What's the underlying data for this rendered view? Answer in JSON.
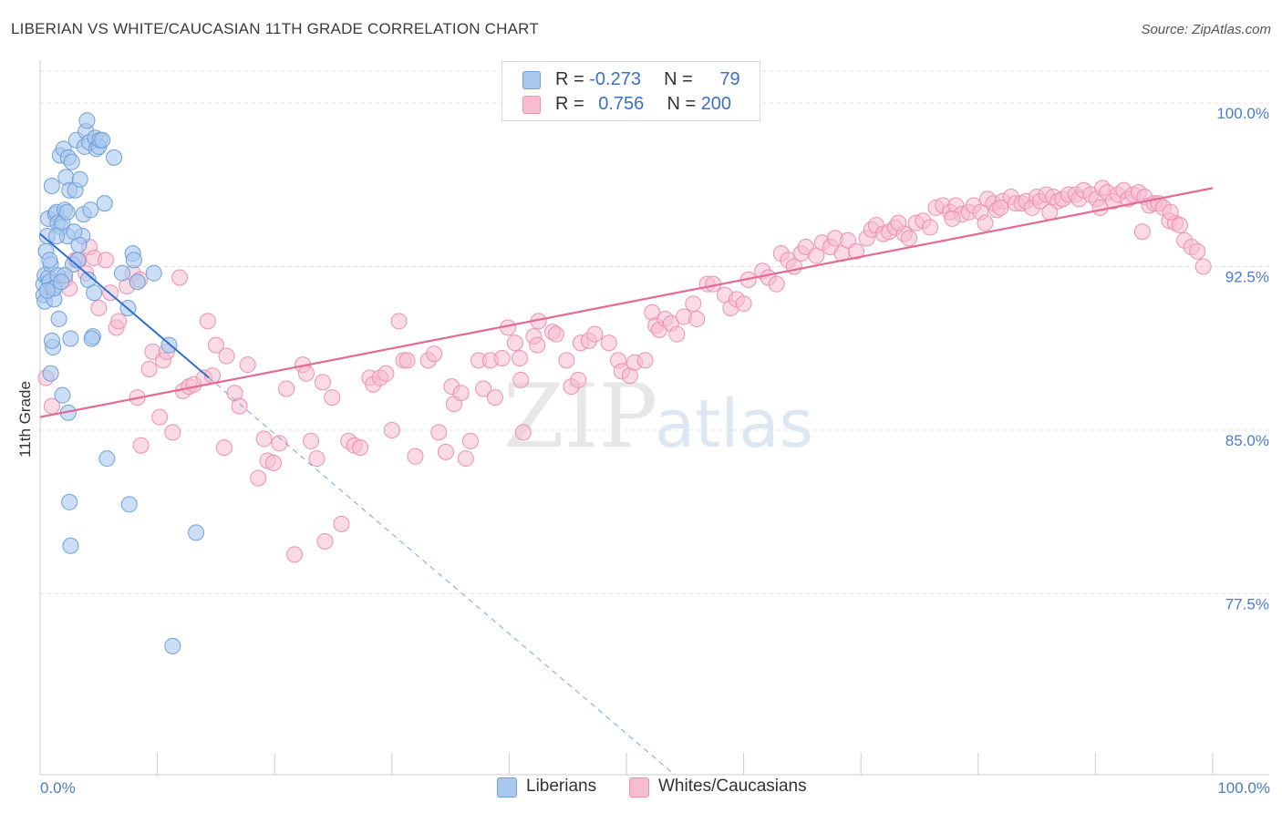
{
  "title": "LIBERIAN VS WHITE/CAUCASIAN 11TH GRADE CORRELATION CHART",
  "source": "Source: ZipAtlas.com",
  "watermark": {
    "zip": "ZIP",
    "atlas": "atlas"
  },
  "legend": {
    "rows": [
      {
        "r_label": "R = ",
        "r_value": "-0.273",
        "n_label": "N = ",
        "n_value": "79",
        "color": "#aac8ee"
      },
      {
        "r_label": "R = ",
        "r_value": "0.756",
        "n_label": "N = ",
        "n_value": "200",
        "color": "#f6bcd0"
      }
    ]
  },
  "bottom_legend": {
    "liberians": "Liberians",
    "whites": "Whites/Caucasians"
  },
  "colors": {
    "blue_fill": "#aac8ee",
    "blue_stroke": "#6f9fd8",
    "blue_line": "#2e6fd0",
    "pink_fill": "#f6bcd0",
    "pink_stroke": "#ee90b1",
    "pink_line": "#e46a95",
    "grid": "#e3e3e3",
    "axis_text": "#4a7cc9"
  },
  "chart_data": {
    "type": "scatter",
    "title": "LIBERIAN VS WHITE/CAUCASIAN 11TH GRADE CORRELATION CHART",
    "xlabel": "",
    "ylabel": "11th Grade",
    "xlim": [
      0,
      100
    ],
    "ylim": [
      69.2,
      101.8
    ],
    "x_tick_labels": [
      "0.0%",
      "100.0%"
    ],
    "y_ticks": [
      {
        "value": 100.0,
        "label": "100.0%"
      },
      {
        "value": 92.5,
        "label": "92.5%"
      },
      {
        "value": 85.0,
        "label": "85.0%"
      },
      {
        "value": 77.5,
        "label": "77.5%"
      }
    ],
    "series": [
      {
        "name": "Liberians",
        "r": -0.273,
        "n": 79,
        "trend": {
          "x0": 0,
          "y0": 94.0,
          "x1": 14.4,
          "y1": 87.4,
          "dashed_to_x": 53.8
        },
        "points": [
          [
            0.3,
            91.2
          ],
          [
            0.3,
            91.7
          ],
          [
            0.4,
            90.9
          ],
          [
            0.4,
            92.1
          ],
          [
            0.5,
            93.2
          ],
          [
            0.6,
            93.9
          ],
          [
            0.7,
            94.7
          ],
          [
            0.7,
            92.0
          ],
          [
            0.8,
            91.8
          ],
          [
            0.9,
            92.6
          ],
          [
            1.0,
            96.2
          ],
          [
            1.1,
            91.5
          ],
          [
            1.2,
            91.0
          ],
          [
            1.3,
            94.9
          ],
          [
            1.4,
            95.0
          ],
          [
            1.5,
            94.5
          ],
          [
            1.5,
            92.1
          ],
          [
            1.6,
            90.1
          ],
          [
            1.7,
            97.6
          ],
          [
            1.8,
            94.3
          ],
          [
            1.9,
            94.5
          ],
          [
            2.0,
            97.9
          ],
          [
            2.1,
            95.1
          ],
          [
            2.2,
            96.6
          ],
          [
            2.3,
            93.9
          ],
          [
            2.4,
            97.5
          ],
          [
            2.5,
            96.0
          ],
          [
            2.6,
            89.2
          ],
          [
            2.7,
            97.3
          ],
          [
            2.8,
            92.6
          ],
          [
            3.0,
            96.0
          ],
          [
            3.1,
            98.3
          ],
          [
            3.2,
            92.8
          ],
          [
            3.4,
            96.5
          ],
          [
            3.6,
            93.9
          ],
          [
            3.7,
            94.9
          ],
          [
            3.8,
            98.0
          ],
          [
            3.9,
            98.7
          ],
          [
            4.0,
            99.2
          ],
          [
            4.1,
            91.9
          ],
          [
            4.2,
            98.2
          ],
          [
            4.3,
            95.1
          ],
          [
            4.5,
            89.3
          ],
          [
            4.6,
            91.3
          ],
          [
            4.7,
            98.4
          ],
          [
            4.8,
            97.9
          ],
          [
            5.0,
            98.0
          ],
          [
            5.1,
            98.3
          ],
          [
            5.3,
            98.3
          ],
          [
            5.5,
            95.4
          ],
          [
            6.3,
            97.5
          ],
          [
            7.0,
            92.2
          ],
          [
            7.5,
            90.6
          ],
          [
            7.9,
            93.1
          ],
          [
            8.0,
            92.8
          ],
          [
            8.3,
            91.8
          ],
          [
            9.7,
            92.2
          ],
          [
            11.0,
            88.9
          ],
          [
            1.1,
            88.8
          ],
          [
            1.0,
            89.1
          ],
          [
            0.9,
            87.6
          ],
          [
            1.9,
            86.6
          ],
          [
            2.4,
            85.8
          ],
          [
            2.5,
            81.7
          ],
          [
            2.6,
            79.7
          ],
          [
            5.7,
            83.7
          ],
          [
            7.6,
            81.6
          ],
          [
            13.3,
            80.3
          ],
          [
            11.3,
            75.1
          ],
          [
            2.3,
            95.0
          ],
          [
            1.2,
            91.5
          ],
          [
            0.8,
            92.8
          ],
          [
            1.4,
            93.9
          ],
          [
            2.1,
            92.1
          ],
          [
            3.3,
            93.5
          ],
          [
            2.9,
            94.1
          ],
          [
            4.4,
            89.2
          ],
          [
            0.6,
            91.4
          ],
          [
            1.8,
            91.8
          ]
        ]
      },
      {
        "name": "Whites/Caucasians",
        "r": 0.756,
        "n": 200,
        "trend": {
          "x0": 0,
          "y0": 85.6,
          "x1": 100,
          "y1": 96.1
        },
        "points": [
          [
            0.5,
            87.4
          ],
          [
            1.0,
            86.1
          ],
          [
            2.1,
            91.9
          ],
          [
            2.5,
            91.5
          ],
          [
            3.0,
            92.8
          ],
          [
            3.3,
            92.8
          ],
          [
            3.9,
            92.2
          ],
          [
            4.2,
            93.4
          ],
          [
            4.6,
            92.9
          ],
          [
            5.0,
            90.6
          ],
          [
            5.6,
            92.8
          ],
          [
            6.0,
            91.3
          ],
          [
            6.5,
            89.7
          ],
          [
            6.7,
            90.0
          ],
          [
            7.4,
            91.6
          ],
          [
            7.9,
            92.2
          ],
          [
            8.3,
            86.5
          ],
          [
            8.5,
            91.9
          ],
          [
            8.6,
            84.3
          ],
          [
            9.3,
            87.8
          ],
          [
            9.6,
            88.6
          ],
          [
            10.2,
            85.6
          ],
          [
            10.5,
            88.2
          ],
          [
            10.8,
            88.6
          ],
          [
            11.3,
            84.9
          ],
          [
            11.9,
            92.0
          ],
          [
            12.2,
            86.8
          ],
          [
            12.7,
            87.0
          ],
          [
            13.1,
            87.1
          ],
          [
            14.0,
            87.4
          ],
          [
            14.3,
            90.0
          ],
          [
            14.7,
            87.5
          ],
          [
            15.0,
            88.9
          ],
          [
            15.7,
            84.2
          ],
          [
            15.9,
            88.4
          ],
          [
            16.6,
            86.7
          ],
          [
            17.0,
            86.1
          ],
          [
            17.7,
            88.0
          ],
          [
            18.6,
            82.8
          ],
          [
            19.1,
            84.6
          ],
          [
            19.4,
            83.6
          ],
          [
            19.9,
            83.5
          ],
          [
            20.4,
            84.4
          ],
          [
            21.0,
            86.9
          ],
          [
            21.7,
            79.3
          ],
          [
            22.4,
            88.0
          ],
          [
            22.7,
            87.6
          ],
          [
            23.1,
            84.5
          ],
          [
            23.6,
            83.7
          ],
          [
            24.1,
            87.2
          ],
          [
            24.3,
            79.9
          ],
          [
            24.9,
            86.5
          ],
          [
            25.7,
            80.7
          ],
          [
            26.3,
            84.5
          ],
          [
            26.8,
            84.3
          ],
          [
            27.3,
            84.2
          ],
          [
            28.1,
            87.4
          ],
          [
            28.4,
            87.1
          ],
          [
            29.0,
            87.4
          ],
          [
            29.5,
            87.6
          ],
          [
            30.0,
            85.0
          ],
          [
            30.6,
            90.0
          ],
          [
            31.0,
            88.2
          ],
          [
            31.3,
            88.2
          ],
          [
            32.0,
            83.8
          ],
          [
            33.1,
            88.2
          ],
          [
            33.6,
            88.5
          ],
          [
            34.0,
            84.9
          ],
          [
            34.6,
            84.0
          ],
          [
            35.1,
            87.0
          ],
          [
            35.3,
            86.2
          ],
          [
            35.9,
            86.7
          ],
          [
            36.3,
            83.7
          ],
          [
            36.7,
            84.5
          ],
          [
            37.4,
            88.2
          ],
          [
            37.8,
            86.9
          ],
          [
            38.4,
            88.2
          ],
          [
            38.8,
            86.5
          ],
          [
            39.4,
            88.3
          ],
          [
            39.9,
            89.7
          ],
          [
            40.5,
            89.0
          ],
          [
            40.9,
            88.3
          ],
          [
            41.0,
            87.3
          ],
          [
            41.2,
            84.9
          ],
          [
            42.1,
            89.3
          ],
          [
            42.4,
            88.9
          ],
          [
            42.5,
            90.0
          ],
          [
            43.7,
            89.5
          ],
          [
            44.0,
            89.4
          ],
          [
            44.9,
            88.2
          ],
          [
            45.3,
            87.0
          ],
          [
            45.9,
            87.3
          ],
          [
            46.1,
            89.0
          ],
          [
            46.8,
            89.1
          ],
          [
            47.3,
            89.4
          ],
          [
            48.5,
            89.0
          ],
          [
            49.3,
            88.2
          ],
          [
            49.6,
            87.7
          ],
          [
            50.3,
            87.5
          ],
          [
            50.7,
            88.1
          ],
          [
            51.6,
            88.2
          ],
          [
            52.2,
            90.4
          ],
          [
            52.5,
            89.8
          ],
          [
            52.8,
            89.6
          ],
          [
            53.3,
            90.1
          ],
          [
            53.8,
            89.9
          ],
          [
            54.3,
            89.4
          ],
          [
            54.9,
            90.2
          ],
          [
            55.7,
            90.8
          ],
          [
            56.0,
            90.1
          ],
          [
            56.9,
            91.7
          ],
          [
            57.4,
            91.7
          ],
          [
            58.4,
            91.2
          ],
          [
            58.9,
            90.6
          ],
          [
            59.4,
            91.0
          ],
          [
            60.0,
            90.8
          ],
          [
            60.4,
            91.9
          ],
          [
            61.6,
            92.3
          ],
          [
            62.1,
            92.0
          ],
          [
            62.8,
            91.7
          ],
          [
            63.2,
            93.1
          ],
          [
            63.8,
            92.8
          ],
          [
            64.3,
            92.5
          ],
          [
            64.9,
            93.1
          ],
          [
            65.3,
            93.4
          ],
          [
            66.2,
            93.0
          ],
          [
            66.7,
            93.6
          ],
          [
            67.4,
            93.4
          ],
          [
            67.8,
            93.8
          ],
          [
            68.4,
            93.1
          ],
          [
            68.9,
            93.7
          ],
          [
            69.6,
            93.2
          ],
          [
            70.5,
            93.8
          ],
          [
            70.9,
            94.2
          ],
          [
            71.3,
            94.4
          ],
          [
            71.9,
            94.0
          ],
          [
            72.4,
            94.1
          ],
          [
            72.9,
            94.3
          ],
          [
            73.7,
            94.0
          ],
          [
            74.1,
            93.8
          ],
          [
            74.7,
            94.5
          ],
          [
            75.3,
            94.6
          ],
          [
            75.9,
            94.3
          ],
          [
            76.4,
            95.2
          ],
          [
            77.0,
            95.3
          ],
          [
            77.6,
            95.0
          ],
          [
            78.1,
            95.3
          ],
          [
            78.6,
            94.9
          ],
          [
            79.2,
            95.0
          ],
          [
            79.6,
            95.3
          ],
          [
            80.2,
            95.0
          ],
          [
            80.8,
            95.6
          ],
          [
            81.3,
            95.4
          ],
          [
            81.6,
            95.1
          ],
          [
            82.1,
            95.5
          ],
          [
            82.8,
            95.7
          ],
          [
            83.2,
            95.4
          ],
          [
            83.7,
            95.4
          ],
          [
            84.1,
            95.5
          ],
          [
            84.6,
            95.2
          ],
          [
            85.0,
            95.7
          ],
          [
            85.3,
            95.5
          ],
          [
            85.8,
            95.8
          ],
          [
            86.4,
            95.7
          ],
          [
            86.8,
            95.5
          ],
          [
            87.2,
            95.6
          ],
          [
            87.7,
            95.8
          ],
          [
            88.3,
            95.8
          ],
          [
            88.6,
            95.6
          ],
          [
            89.0,
            96.0
          ],
          [
            89.6,
            95.8
          ],
          [
            90.1,
            95.6
          ],
          [
            90.6,
            96.1
          ],
          [
            91.0,
            95.9
          ],
          [
            91.5,
            95.5
          ],
          [
            91.9,
            95.8
          ],
          [
            92.4,
            96.0
          ],
          [
            92.8,
            95.6
          ],
          [
            93.2,
            95.8
          ],
          [
            93.7,
            95.9
          ],
          [
            94.2,
            95.7
          ],
          [
            94.6,
            95.3
          ],
          [
            95.0,
            95.4
          ],
          [
            95.4,
            95.4
          ],
          [
            95.8,
            95.2
          ],
          [
            96.3,
            94.6
          ],
          [
            96.8,
            94.5
          ],
          [
            97.2,
            94.4
          ],
          [
            97.6,
            93.7
          ],
          [
            98.2,
            93.4
          ],
          [
            98.7,
            93.2
          ],
          [
            99.2,
            92.5
          ],
          [
            96.4,
            95.0
          ],
          [
            94.0,
            94.1
          ],
          [
            90.4,
            95.2
          ],
          [
            86.1,
            95.0
          ],
          [
            81.9,
            95.2
          ],
          [
            80.6,
            94.5
          ],
          [
            77.8,
            94.7
          ],
          [
            73.2,
            94.5
          ]
        ]
      }
    ]
  }
}
